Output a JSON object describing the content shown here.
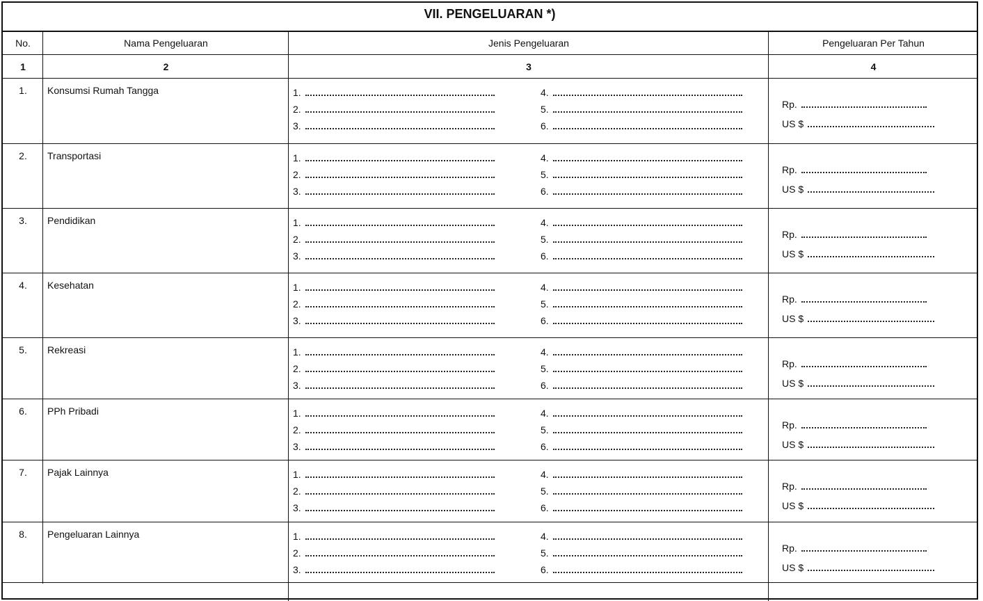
{
  "title": "VII.  PENGELUARAN *)",
  "headers": {
    "no": "No.",
    "name": "Nama Pengeluaran",
    "type": "Jenis Pengeluaran",
    "annual": "Pengeluaran Per Tahun"
  },
  "column_numbers": [
    "1",
    "2",
    "3",
    "4"
  ],
  "item_labels": [
    "1.",
    "2.",
    "3.",
    "4.",
    "5.",
    "6."
  ],
  "currency_labels": {
    "rp": "Rp.",
    "usd": "US $"
  },
  "rows": [
    {
      "no": "1.",
      "name": "Konsumsi Rumah Tangga"
    },
    {
      "no": "2.",
      "name": "Transportasi"
    },
    {
      "no": "3.",
      "name": "Pendidikan"
    },
    {
      "no": "4.",
      "name": "Kesehatan"
    },
    {
      "no": "5.",
      "name": "Rekreasi"
    },
    {
      "no": "6.",
      "name": "PPh Pribadi"
    },
    {
      "no": "7.",
      "name": "Pajak Lainnya"
    },
    {
      "no": "8.",
      "name": "Pengeluaran Lainnya"
    }
  ]
}
